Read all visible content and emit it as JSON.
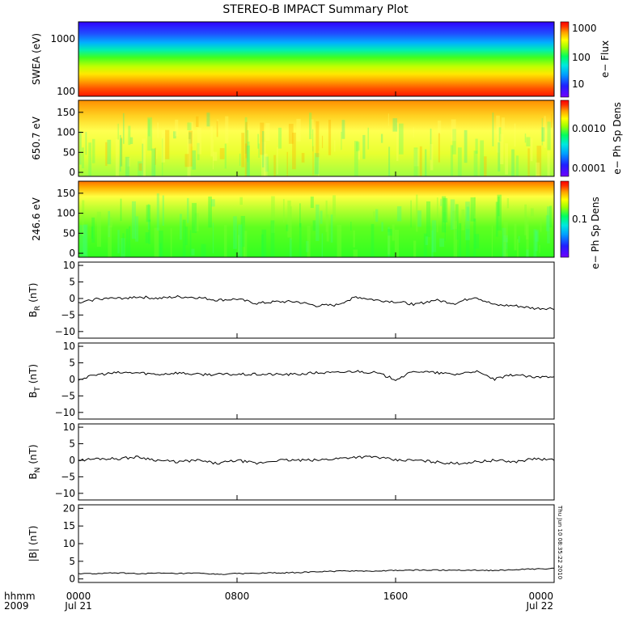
{
  "title": "STEREO-B IMPACT Summary Plot",
  "chart_data": [
    {
      "type": "heatmap",
      "name": "swea",
      "ylabel": "SWEA (eV)",
      "y_scale": "log",
      "ylim": [
        95,
        2200
      ],
      "yticks": [
        "100",
        "1000"
      ],
      "colorbar_label": "e− Flux",
      "colorbar_scale": "log",
      "colorbar_range": [
        3,
        3000
      ],
      "colorbar_ticks": [
        "10",
        "100",
        "1000"
      ],
      "description_rows_low_to_high": [
        0.96,
        0.94,
        0.88,
        0.78,
        0.68,
        0.6,
        0.52,
        0.42,
        0.3,
        0.15,
        0.05
      ]
    },
    {
      "type": "heatmap",
      "name": "pad_650",
      "ylabel": "650.7 eV",
      "ylim": [
        -10,
        180
      ],
      "yticks": [
        "0",
        "50",
        "100",
        "150"
      ],
      "colorbar_label": "e− Ph Sp Dens",
      "colorbar_scale": "log",
      "colorbar_range": [
        7e-05,
        0.005
      ],
      "colorbar_ticks": [
        "0.0001",
        "0.0010"
      ]
    },
    {
      "type": "heatmap",
      "name": "pad_246",
      "ylabel": "246.6 eV",
      "ylim": [
        -10,
        180
      ],
      "yticks": [
        "0",
        "50",
        "100",
        "150"
      ],
      "colorbar_label": "e− Ph Sp Dens",
      "colorbar_scale": "log",
      "colorbar_range": [
        0.02,
        0.4
      ],
      "colorbar_ticks": [
        "0.1"
      ]
    },
    {
      "type": "line",
      "name": "BR",
      "ylabel_main": "B",
      "ylabel_sub": "R",
      "ylabel_unit": "(nT)",
      "ylim": [
        -12,
        11
      ],
      "yticks": [
        "−10",
        "−5",
        "0",
        "5",
        "10"
      ],
      "ytick_values": [
        -10,
        -5,
        0,
        5,
        10
      ],
      "x_hours": [
        0,
        1,
        2,
        3,
        4,
        5,
        6,
        7,
        8,
        9,
        10,
        11,
        12,
        13,
        14,
        15,
        16,
        17,
        18,
        19,
        20,
        21,
        22,
        23,
        24
      ],
      "y": [
        -1.5,
        0,
        0,
        0.5,
        0,
        0.5,
        0.3,
        -0.5,
        -0.2,
        -1.5,
        -1,
        -1,
        -2.2,
        -2,
        0.5,
        -0.5,
        -1,
        -1.8,
        -0.5,
        -1.5,
        0.5,
        -2,
        -2.2,
        -3,
        -3
      ]
    },
    {
      "type": "line",
      "name": "BT",
      "ylabel_main": "B",
      "ylabel_sub": "T",
      "ylabel_unit": "(nT)",
      "ylim": [
        -12,
        11
      ],
      "yticks": [
        "−10",
        "−5",
        "0",
        "5",
        "10"
      ],
      "ytick_values": [
        -10,
        -5,
        0,
        5,
        10
      ],
      "x_hours": [
        0,
        1,
        2,
        3,
        4,
        5,
        6,
        7,
        8,
        9,
        10,
        11,
        12,
        13,
        14,
        15,
        16,
        17,
        18,
        19,
        20,
        21,
        22,
        23,
        24
      ],
      "y": [
        0,
        1.5,
        2,
        2,
        1.5,
        2,
        1.5,
        1.5,
        1.5,
        1.5,
        1.5,
        1.5,
        2,
        2,
        2.5,
        2,
        0,
        2.5,
        2,
        1.5,
        2.5,
        0,
        1.5,
        0.5,
        1
      ]
    },
    {
      "type": "line",
      "name": "BN",
      "ylabel_main": "B",
      "ylabel_sub": "N",
      "ylabel_unit": "(nT)",
      "ylim": [
        -12,
        11
      ],
      "yticks": [
        "−10",
        "−5",
        "0",
        "5",
        "10"
      ],
      "ytick_values": [
        -10,
        -5,
        0,
        5,
        10
      ],
      "x_hours": [
        0,
        1,
        2,
        3,
        4,
        5,
        6,
        7,
        8,
        9,
        10,
        11,
        12,
        13,
        14,
        15,
        16,
        17,
        18,
        19,
        20,
        21,
        22,
        23,
        24
      ],
      "y": [
        0,
        0.5,
        0.5,
        1,
        0,
        -0.5,
        0,
        -1,
        0,
        -1,
        0,
        0,
        0,
        0.5,
        1,
        1,
        0,
        0,
        -0.5,
        -1,
        -0.5,
        0,
        -0.5,
        0.5,
        0
      ]
    },
    {
      "type": "line",
      "name": "Bmag",
      "ylabel_main": "|B|",
      "ylabel_sub": "",
      "ylabel_unit": "(nT)",
      "ylim": [
        -1,
        21
      ],
      "yticks": [
        "0",
        "5",
        "10",
        "15",
        "20"
      ],
      "ytick_values": [
        0,
        5,
        10,
        15,
        20
      ],
      "x_hours": [
        0,
        1,
        2,
        3,
        4,
        5,
        6,
        7,
        8,
        9,
        10,
        11,
        12,
        13,
        14,
        15,
        16,
        17,
        18,
        19,
        20,
        21,
        22,
        23,
        24
      ],
      "y": [
        1.5,
        1.5,
        1.7,
        1.5,
        1.6,
        1.5,
        1.6,
        1.3,
        1.5,
        1.6,
        1.7,
        1.8,
        2,
        2.2,
        2.3,
        2.2,
        2.4,
        2.5,
        2.5,
        2.5,
        2.5,
        2.4,
        2.6,
        2.8,
        3
      ]
    }
  ],
  "xaxis": {
    "ticks": [
      "0000",
      "0800",
      "1600",
      "0000"
    ],
    "tick_hours": [
      0,
      8,
      16,
      24
    ],
    "date_labels": [
      "Jul 21",
      "Jul 22"
    ],
    "row_label_top": "hhmm",
    "row_label_bottom": "2009"
  },
  "timestamp": "Thu Jun 10 08:35:22 2010",
  "colors": {
    "line": "#000000",
    "axis": "#000000",
    "rainbow": [
      "#7000ff",
      "#2020ff",
      "#00a0ff",
      "#00e8e0",
      "#00ff60",
      "#a0ff00",
      "#ffff00",
      "#ffa000",
      "#ff3000",
      "#ff0000"
    ]
  }
}
